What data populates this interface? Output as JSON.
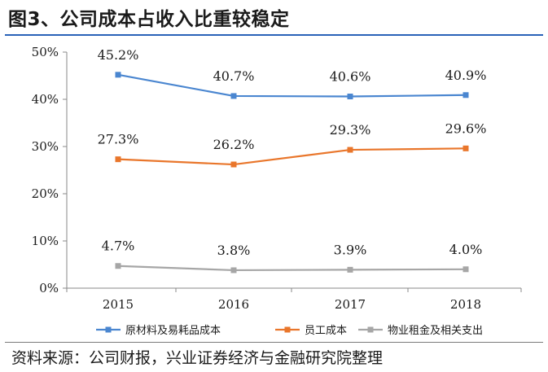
{
  "title": "图3、公司成本占收入比重较稳定",
  "source": "资料来源：公司财报，兴业证券经济与金融研究院整理",
  "colors": {
    "series_blue": "#4a86d0",
    "series_orange": "#e9762b",
    "series_gray": "#a6a6a6",
    "axis": "#888888",
    "title_rule": "#2a62b8"
  },
  "chart_data": {
    "type": "line",
    "title": "图3、公司成本占收入比重较稳定",
    "categories": [
      "2015",
      "2016",
      "2017",
      "2018"
    ],
    "ylim": [
      0,
      50
    ],
    "yticks": [
      0,
      10,
      20,
      30,
      40,
      50
    ],
    "ytick_labels": [
      "0%",
      "10%",
      "20%",
      "30%",
      "40%",
      "50%"
    ],
    "xlabel": "",
    "ylabel": "",
    "grid": false,
    "legend_position": "bottom",
    "series": [
      {
        "name": "原材料及易耗品成本",
        "values": [
          45.2,
          40.7,
          40.6,
          40.9
        ],
        "labels": [
          "45.2%",
          "40.7%",
          "40.6%",
          "40.9%"
        ],
        "color": "#4a86d0"
      },
      {
        "name": "员工成本",
        "values": [
          27.3,
          26.2,
          29.3,
          29.6
        ],
        "labels": [
          "27.3%",
          "26.2%",
          "29.3%",
          "29.6%"
        ],
        "color": "#e9762b"
      },
      {
        "name": "物业租金及相关支出",
        "values": [
          4.7,
          3.8,
          3.9,
          4.0
        ],
        "labels": [
          "4.7%",
          "3.8%",
          "3.9%",
          "4.0%"
        ],
        "color": "#a6a6a6"
      }
    ]
  }
}
